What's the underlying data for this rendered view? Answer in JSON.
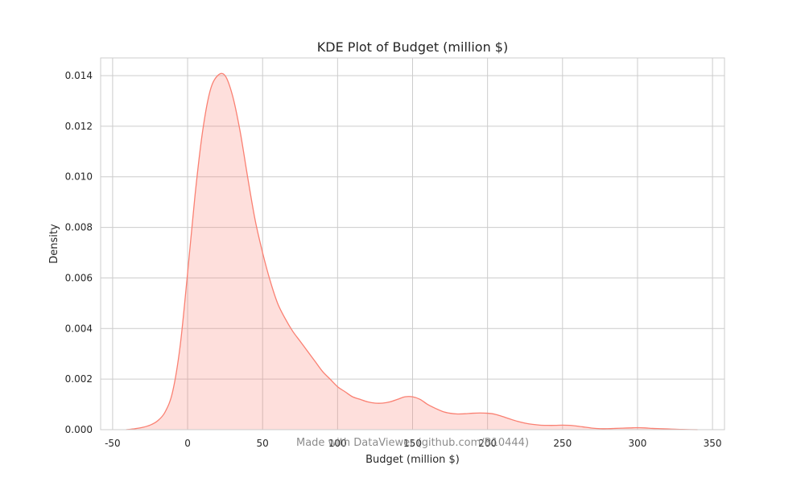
{
  "chart_data": {
    "type": "area",
    "title": "KDE Plot of Budget (million $)",
    "xlabel": "Budget (million $)",
    "ylabel": "Density",
    "xlim": [
      -58,
      358
    ],
    "ylim": [
      0,
      0.0147
    ],
    "xticks": [
      -50,
      0,
      50,
      100,
      150,
      200,
      250,
      300,
      350
    ],
    "yticks": [
      0.0,
      0.002,
      0.004,
      0.006,
      0.008,
      0.01,
      0.012,
      0.014
    ],
    "xtick_labels": [
      "-50",
      "0",
      "50",
      "100",
      "150",
      "200",
      "250",
      "300",
      "350"
    ],
    "ytick_labels": [
      "0.000",
      "0.002",
      "0.004",
      "0.006",
      "0.008",
      "0.010",
      "0.012",
      "0.014"
    ],
    "grid": true,
    "series": [
      {
        "x": [
          -41,
          -35,
          -30,
          -25,
          -20,
          -15,
          -10,
          -5,
          0,
          5,
          10,
          15,
          20,
          25,
          30,
          35,
          40,
          45,
          50,
          55,
          60,
          65,
          70,
          75,
          80,
          85,
          90,
          95,
          100,
          105,
          110,
          115,
          120,
          125,
          130,
          135,
          140,
          145,
          150,
          155,
          160,
          165,
          170,
          175,
          180,
          185,
          190,
          195,
          200,
          205,
          210,
          215,
          220,
          225,
          230,
          235,
          240,
          245,
          250,
          255,
          260,
          265,
          270,
          275,
          280,
          285,
          290,
          295,
          300,
          305,
          310,
          315,
          320,
          325,
          330,
          340
        ],
        "y": [
          0.0,
          4e-05,
          9e-05,
          0.00018,
          0.00035,
          0.0007,
          0.0015,
          0.0033,
          0.0062,
          0.0093,
          0.0118,
          0.0134,
          0.014,
          0.014,
          0.0132,
          0.0118,
          0.01,
          0.0083,
          0.007,
          0.0059,
          0.005,
          0.0044,
          0.0039,
          0.0035,
          0.0031,
          0.0027,
          0.0023,
          0.002,
          0.0017,
          0.0015,
          0.0013,
          0.0012,
          0.0011,
          0.00105,
          0.00105,
          0.0011,
          0.0012,
          0.0013,
          0.0013,
          0.0012,
          0.001,
          0.00085,
          0.00072,
          0.00065,
          0.00062,
          0.00063,
          0.00065,
          0.00066,
          0.00065,
          0.00061,
          0.00052,
          0.00042,
          0.00033,
          0.00026,
          0.00021,
          0.00018,
          0.00017,
          0.00017,
          0.00018,
          0.00017,
          0.00014,
          0.0001,
          6e-05,
          4e-05,
          4e-05,
          5e-05,
          6e-05,
          7e-05,
          8e-05,
          7e-05,
          5e-05,
          4e-05,
          3e-05,
          2e-05,
          1e-05,
          0.0
        ]
      }
    ],
    "colors": {
      "line": "#fa8072",
      "fill": "#fa8072",
      "fill_opacity": 0.25,
      "grid": "#cccccc",
      "text": "#262626"
    }
  },
  "watermark": "Made with DataViewer (github.com/B10444)"
}
